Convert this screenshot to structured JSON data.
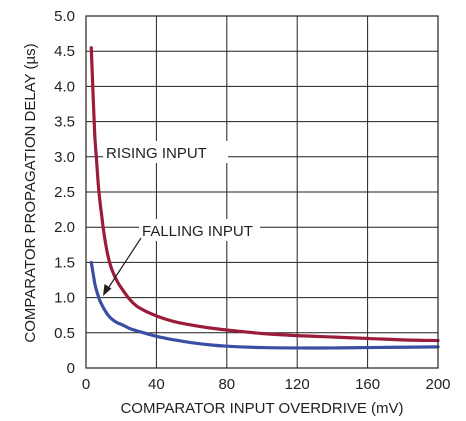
{
  "chart_data": {
    "type": "line",
    "xlabel": "COMPARATOR INPUT OVERDRIVE (mV)",
    "ylabel": "COMPARATOR PROPAGATION DELAY (µs)",
    "xlim": [
      0,
      200
    ],
    "ylim": [
      0,
      5.0
    ],
    "x_ticks": [
      "0",
      "40",
      "80",
      "120",
      "160",
      "200"
    ],
    "y_ticks": [
      "0",
      "0.5",
      "1.0",
      "1.5",
      "2.0",
      "2.5",
      "3.0",
      "3.5",
      "4.0",
      "4.5",
      "5.0"
    ],
    "x_tick_values": [
      0,
      40,
      80,
      120,
      160,
      200
    ],
    "y_tick_values": [
      0,
      0.5,
      1.0,
      1.5,
      2.0,
      2.5,
      3.0,
      3.5,
      4.0,
      4.5,
      5.0
    ],
    "grid": true,
    "series": [
      {
        "name": "RISING INPUT",
        "color": "#9b1b3a",
        "x": [
          3,
          4,
          5,
          6,
          7,
          8,
          9,
          10,
          12,
          14,
          16,
          18,
          20,
          25,
          30,
          40,
          50,
          60,
          70,
          80,
          100,
          120,
          140,
          160,
          180,
          200
        ],
        "y": [
          4.55,
          3.9,
          3.3,
          2.95,
          2.6,
          2.35,
          2.15,
          1.95,
          1.65,
          1.45,
          1.32,
          1.22,
          1.14,
          0.97,
          0.86,
          0.74,
          0.66,
          0.61,
          0.57,
          0.54,
          0.49,
          0.46,
          0.44,
          0.42,
          0.4,
          0.39
        ]
      },
      {
        "name": "FALLING INPUT",
        "color": "#3a4fa3",
        "x": [
          3,
          4,
          5,
          6,
          7,
          8,
          10,
          12,
          14,
          16,
          18,
          20,
          25,
          30,
          40,
          50,
          60,
          70,
          80,
          100,
          120,
          140,
          160,
          180,
          200
        ],
        "y": [
          1.5,
          1.35,
          1.2,
          1.1,
          1.02,
          0.95,
          0.85,
          0.77,
          0.71,
          0.67,
          0.64,
          0.62,
          0.56,
          0.52,
          0.45,
          0.4,
          0.36,
          0.33,
          0.31,
          0.29,
          0.285,
          0.285,
          0.29,
          0.295,
          0.3
        ]
      }
    ],
    "annotations": [
      {
        "text": "RISING INPUT",
        "series": 0
      },
      {
        "text": "FALLING INPUT",
        "series": 1
      }
    ]
  }
}
